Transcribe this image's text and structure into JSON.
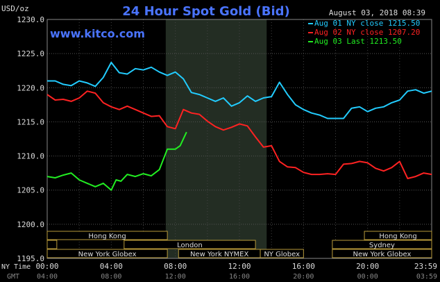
{
  "chart_data": {
    "type": "line",
    "title": "24 Hour Spot Gold (Bid)",
    "website": "www.kitco.com",
    "timestamp": "August 03, 2018 08:39",
    "y_unit": "USD/oz",
    "ylim": [
      1195,
      1230
    ],
    "y_ticks": [
      "1230.0",
      "1225.0",
      "1220.0",
      "1215.0",
      "1210.0",
      "1205.0",
      "1200.0",
      "1195.0"
    ],
    "y_tick_values": [
      1230,
      1225,
      1220,
      1215,
      1210,
      1205,
      1200,
      1195
    ],
    "xlim": [
      0,
      24
    ],
    "x_ticks_ny": [
      "00:00",
      "04:00",
      "08:00",
      "12:00",
      "16:00",
      "20:00",
      "23:59"
    ],
    "x_ticks_gmt": [
      "04:00",
      "08:00",
      "12:00",
      "16:00",
      "20:00",
      "00:00",
      "03:59"
    ],
    "x_tick_hours": [
      0,
      4,
      8,
      12,
      16,
      20,
      23.98
    ],
    "x_row_label_ny": "NY Time",
    "x_row_label_gmt": "GMT",
    "shaded_window_hours": [
      7.4,
      13.7
    ],
    "grid": true,
    "legend_position": "top-right",
    "series": [
      {
        "name": "Aug 01 NY close 1215.50",
        "color": "#22ccff",
        "x": [
          0,
          0.5,
          1,
          1.5,
          2,
          2.5,
          3,
          3.5,
          4,
          4.1,
          4.5,
          5,
          5.5,
          6,
          6.5,
          7,
          7.5,
          8,
          8.5,
          9,
          9.5,
          10,
          10.5,
          11,
          11.5,
          12,
          12.5,
          13,
          13.5,
          14,
          14.5,
          15,
          15.5,
          16,
          16.5,
          17,
          17.5,
          18,
          18.5,
          19,
          19.5,
          20,
          20.5,
          21,
          21.5,
          22,
          22.5,
          23,
          23.5,
          24
        ],
        "values": [
          1221.0,
          1221.0,
          1220.5,
          1220.3,
          1221.0,
          1220.7,
          1220.2,
          1221.5,
          1223.7,
          1223.4,
          1222.2,
          1222.0,
          1222.8,
          1222.6,
          1223.0,
          1222.3,
          1221.8,
          1222.3,
          1221.3,
          1219.3,
          1219.0,
          1218.5,
          1218.0,
          1218.5,
          1217.3,
          1217.8,
          1218.8,
          1218.0,
          1218.5,
          1218.7,
          1220.8,
          1219.0,
          1217.5,
          1216.8,
          1216.3,
          1216.0,
          1215.5,
          1215.5,
          1215.5,
          1217.0,
          1217.2,
          1216.5,
          1217.0,
          1217.2,
          1217.8,
          1218.2,
          1219.5,
          1219.7,
          1219.2,
          1219.5
        ]
      },
      {
        "name": "Aug 02 NY close 1207.20",
        "color": "#ff2222",
        "x": [
          0,
          0.5,
          1,
          1.5,
          2,
          2.5,
          3,
          3.5,
          4,
          4.5,
          5,
          5.5,
          6,
          6.5,
          7,
          7.5,
          8,
          8.5,
          9,
          9.5,
          10,
          10.5,
          11,
          11.5,
          12,
          12.5,
          13,
          13.5,
          14,
          14.5,
          15,
          15.5,
          16,
          16.5,
          17,
          17.5,
          18,
          18.5,
          19,
          19.5,
          20,
          20.5,
          21,
          21.5,
          22,
          22.5,
          23,
          23.5,
          24
        ],
        "values": [
          1219.0,
          1218.2,
          1218.3,
          1218.0,
          1218.5,
          1219.5,
          1219.2,
          1217.8,
          1217.2,
          1216.8,
          1217.3,
          1216.8,
          1216.3,
          1215.8,
          1215.9,
          1214.3,
          1214.0,
          1216.8,
          1216.3,
          1216.1,
          1215.1,
          1214.3,
          1213.8,
          1214.2,
          1214.7,
          1214.4,
          1212.8,
          1211.3,
          1211.5,
          1209.2,
          1208.4,
          1208.3,
          1207.6,
          1207.3,
          1207.3,
          1207.4,
          1207.3,
          1208.8,
          1208.9,
          1209.2,
          1209.0,
          1208.2,
          1207.8,
          1208.3,
          1209.2,
          1206.7,
          1207.0,
          1207.5,
          1207.3
        ]
      },
      {
        "name": "Aug 03 Last 1213.50",
        "color": "#22ee22",
        "x": [
          0,
          0.5,
          1,
          1.5,
          2,
          2.5,
          3,
          3.5,
          4,
          4.3,
          4.6,
          5,
          5.5,
          6,
          6.5,
          7,
          7.5,
          8,
          8.3,
          8.6,
          8.7
        ],
        "values": [
          1207.0,
          1206.8,
          1207.2,
          1207.5,
          1206.5,
          1206.0,
          1205.5,
          1206.0,
          1205.0,
          1206.5,
          1206.3,
          1207.3,
          1207.0,
          1207.4,
          1207.1,
          1208.0,
          1211.0,
          1211.0,
          1211.5,
          1213.0,
          1213.5
        ]
      }
    ],
    "market_rows": [
      {
        "label": "Hong Kong",
        "segments": [
          {
            "start": 0,
            "end": 7.5,
            "label": "Hong Kong"
          },
          {
            "start": 19.8,
            "end": 24,
            "label": "Hong Kong"
          }
        ]
      },
      {
        "label": "London",
        "segments": [
          {
            "start": 0,
            "end": 0.6,
            "label": ""
          },
          {
            "start": 4.8,
            "end": 13.0,
            "label": "London"
          }
        ]
      },
      {
        "label": "Sydney",
        "segments": [
          {
            "start": 17.8,
            "end": 24,
            "label": "Sydney"
          }
        ]
      },
      {
        "label": "New York",
        "segments": [
          {
            "start": 0,
            "end": 7.5,
            "label": "New York Globex"
          },
          {
            "start": 8.2,
            "end": 13.3,
            "label": "New York NYMEX"
          },
          {
            "start": 13.3,
            "end": 16.0,
            "label": "NY Globex"
          },
          {
            "start": 17.8,
            "end": 24,
            "label": "New York Globex"
          }
        ]
      }
    ]
  }
}
